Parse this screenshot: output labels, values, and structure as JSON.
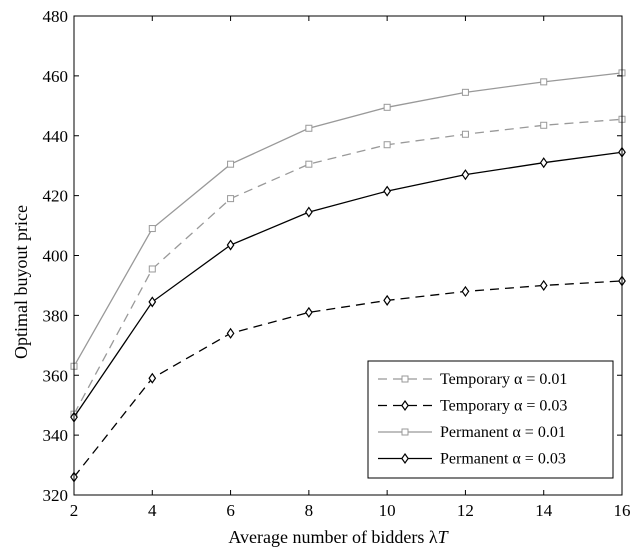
{
  "chart_data": {
    "type": "line",
    "title": "",
    "xlabel": "Average number of bidders λT",
    "xlabel_main": "Average number of bidders λ",
    "xlabel_var": "T",
    "ylabel": "Optimal buyout price",
    "x": [
      2,
      4,
      6,
      8,
      10,
      12,
      14,
      16
    ],
    "xlim": [
      2,
      16
    ],
    "ylim": [
      320,
      480
    ],
    "xticks": [
      2,
      4,
      6,
      8,
      10,
      12,
      14,
      16
    ],
    "yticks": [
      320,
      340,
      360,
      380,
      400,
      420,
      440,
      460,
      480
    ],
    "grid": false,
    "legend_position": "bottom-right",
    "series": [
      {
        "name": "Temporary α = 0.01",
        "color": "#999999",
        "dash": "dashed",
        "marker": "square",
        "values": [
          347,
          395.5,
          419,
          430.5,
          437,
          440.5,
          443.5,
          445.5
        ]
      },
      {
        "name": "Temporary α = 0.03",
        "color": "#000000",
        "dash": "dashed",
        "marker": "diamond",
        "values": [
          326,
          359,
          374,
          381,
          385,
          388,
          390,
          391.5
        ]
      },
      {
        "name": "Permanent α = 0.01",
        "color": "#999999",
        "dash": "solid",
        "marker": "square",
        "values": [
          363,
          409,
          430.5,
          442.5,
          449.5,
          454.5,
          458,
          461
        ]
      },
      {
        "name": "Permanent α = 0.03",
        "color": "#000000",
        "dash": "solid",
        "marker": "diamond",
        "values": [
          346,
          384.5,
          403.5,
          414.5,
          421.5,
          427,
          431,
          434.5
        ]
      }
    ]
  }
}
